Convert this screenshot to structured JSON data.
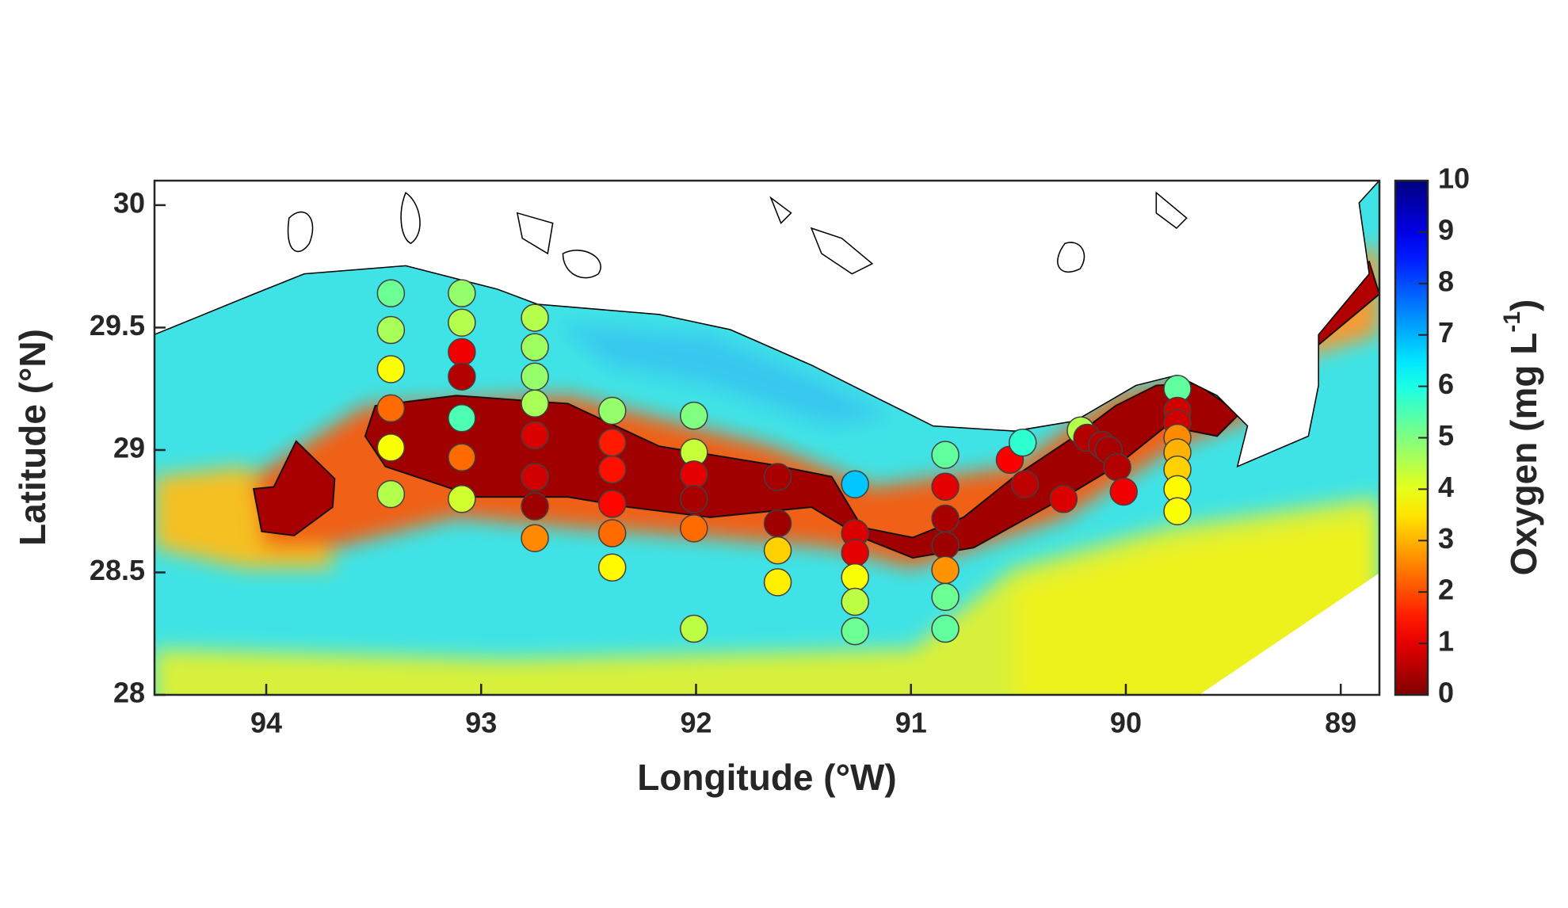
{
  "chart_data": {
    "type": "scatter",
    "xlabel": "Longitude (°W)",
    "ylabel": "Latitude (°N)",
    "xlim": [
      94.52,
      88.82
    ],
    "xticks": [
      94,
      93,
      92,
      91,
      90,
      89
    ],
    "ylim": [
      28,
      30.1
    ],
    "yticks": [
      28,
      28.5,
      29,
      29.5,
      30
    ],
    "x": [
      93.42,
      93.42,
      93.42,
      93.42,
      93.42,
      93.42,
      93.09,
      93.09,
      93.09,
      93.09,
      93.09,
      93.09,
      93.09,
      92.75,
      92.75,
      92.75,
      92.75,
      92.75,
      92.75,
      92.75,
      92.75,
      92.39,
      92.39,
      92.39,
      92.39,
      92.39,
      92.39,
      92.01,
      92.01,
      92.01,
      92.01,
      92.01,
      92.01,
      91.62,
      91.62,
      91.62,
      91.62,
      91.26,
      91.26,
      91.26,
      91.26,
      91.26,
      91.26,
      90.84,
      90.84,
      90.84,
      90.84,
      90.84,
      90.84,
      90.84,
      90.54,
      90.48,
      90.47,
      90.29,
      90.21,
      90.18,
      90.11,
      90.08,
      90.04,
      90.01,
      89.76,
      89.76,
      89.76,
      89.76,
      89.76,
      89.76,
      89.76,
      89.76
    ],
    "y": [
      29.64,
      29.49,
      29.33,
      29.17,
      29.01,
      28.82,
      29.64,
      29.52,
      29.4,
      29.3,
      29.13,
      28.97,
      28.8,
      29.54,
      29.42,
      29.3,
      29.19,
      29.06,
      28.89,
      28.77,
      28.64,
      29.16,
      29.03,
      28.92,
      28.78,
      28.66,
      28.52,
      29.14,
      28.99,
      28.9,
      28.8,
      28.68,
      28.27,
      28.89,
      28.7,
      28.59,
      28.46,
      28.86,
      28.66,
      28.58,
      28.48,
      28.38,
      28.26,
      28.98,
      28.85,
      28.72,
      28.61,
      28.51,
      28.4,
      28.27,
      28.96,
      29.03,
      28.86,
      28.8,
      29.08,
      29.05,
      29.02,
      29.0,
      28.93,
      28.83,
      29.25,
      29.16,
      29.11,
      29.05,
      28.99,
      28.92,
      28.84,
      28.75
    ],
    "values": [
      5.2,
      4.6,
      3.8,
      2.3,
      3.8,
      4.5,
      4.8,
      4.5,
      1.1,
      0.5,
      5.5,
      2.3,
      4.2,
      4.5,
      4.7,
      4.8,
      4.6,
      0.9,
      0.8,
      0.3,
      2.6,
      4.8,
      1.5,
      1.4,
      1.3,
      2.3,
      3.7,
      5.0,
      4.3,
      1.0,
      0.4,
      2.3,
      4.4,
      0.4,
      0.3,
      3.3,
      3.6,
      6.8,
      0.9,
      1.0,
      3.8,
      4.4,
      5.2,
      5.3,
      1.0,
      0.4,
      0.3,
      2.7,
      5.2,
      5.3,
      1.2,
      5.8,
      0.6,
      0.9,
      4.5,
      0.5,
      0.5,
      0.4,
      0.5,
      1.1,
      5.3,
      0.8,
      0.8,
      2.6,
      3.0,
      3.3,
      3.7,
      3.8
    ],
    "marker_edge": "#404040",
    "colorbar": {
      "label": "Oxygen (mg L",
      "label_superscript": "-1",
      "label_suffix": ")",
      "lim": [
        0,
        10
      ],
      "ticks": [
        0,
        1,
        2,
        3,
        4,
        5,
        6,
        7,
        8,
        9,
        10
      ],
      "colormap": "jet",
      "reversed": true
    }
  }
}
